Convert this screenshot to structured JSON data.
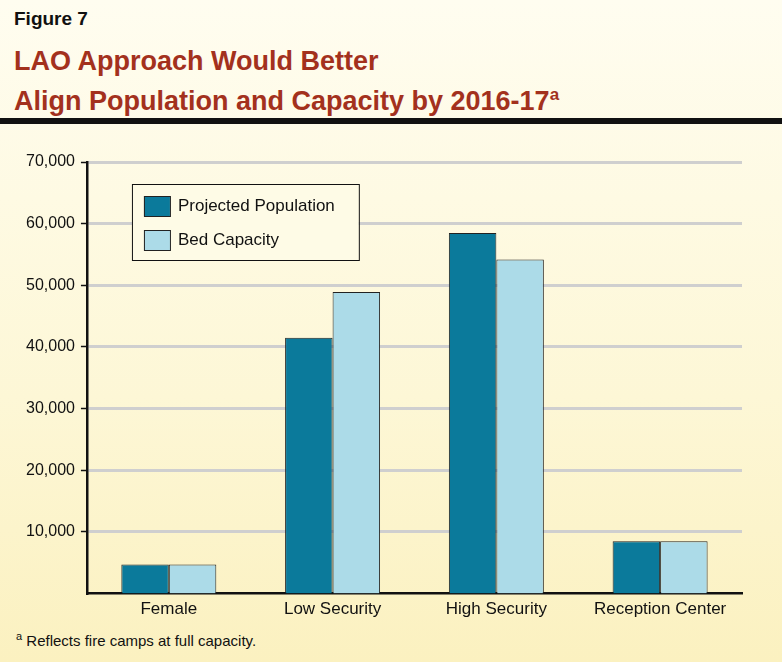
{
  "chart_data": {
    "type": "bar",
    "figure_label": "Figure 7",
    "title": [
      "LAO Approach Would Better",
      "Align Population and Capacity by 2016-17"
    ],
    "title_note_mark": "a",
    "footnote": {
      "mark": "a",
      "text": "Reflects fire camps at full capacity."
    },
    "categories": [
      "Female",
      "Low Security",
      "High Security",
      "Reception Center"
    ],
    "series": [
      {
        "name": "Projected Population",
        "color": "#0b7a9b",
        "values": [
          4700,
          41500,
          58500,
          8500
        ]
      },
      {
        "name": "Bed Capacity",
        "color": "#acdbe8",
        "values": [
          4700,
          48900,
          54200,
          8500
        ]
      }
    ],
    "ylim": [
      0,
      70000
    ],
    "yticks": [
      {
        "value": 10000,
        "label": "10,000"
      },
      {
        "value": 20000,
        "label": "20,000"
      },
      {
        "value": 30000,
        "label": "30,000"
      },
      {
        "value": 40000,
        "label": "40,000"
      },
      {
        "value": 50000,
        "label": "50,000"
      },
      {
        "value": 60000,
        "label": "60,000"
      },
      {
        "value": 70000,
        "label": "70,000"
      }
    ],
    "grid": true,
    "legend": "upper left"
  }
}
